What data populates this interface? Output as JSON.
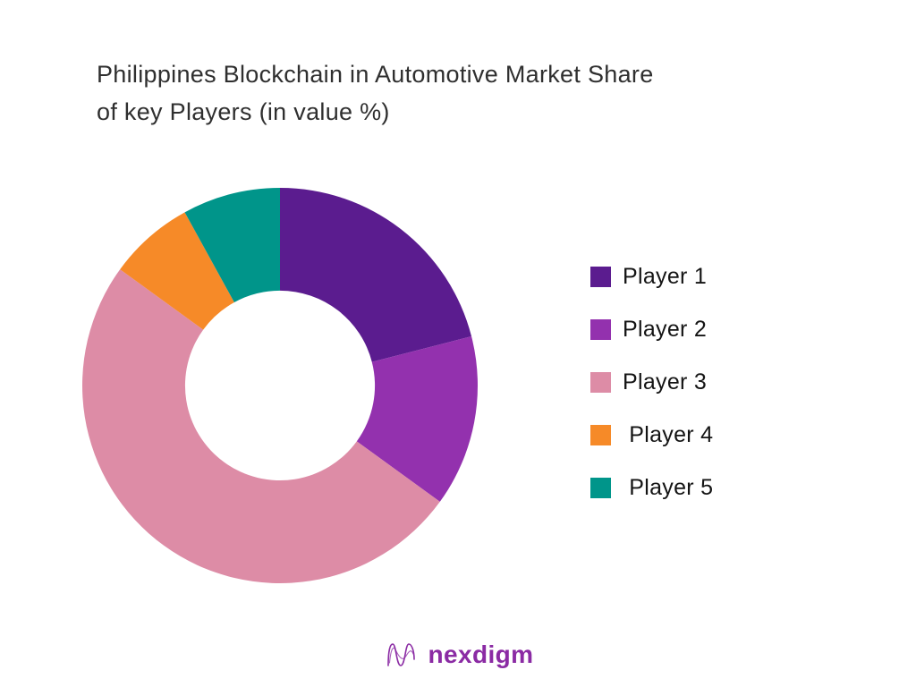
{
  "title": {
    "line1": "Philippines Blockchain in Automotive Market Share",
    "line2": "of key Players (in value %)"
  },
  "chart_data": {
    "type": "pie",
    "subtype": "donut",
    "title": "Philippines Blockchain in Automotive Market Share of key Players (in value %)",
    "categories": [
      "Player 1",
      "Player 2",
      "Player 3",
      "Player 4",
      "Player 5"
    ],
    "values": [
      21,
      14,
      50,
      7,
      8
    ],
    "unit": "percent (estimated from arc angles, no data labels shown)",
    "colors": [
      "#5B1C8F",
      "#9331AE",
      "#DD8CA6",
      "#F68A28",
      "#00958A"
    ],
    "start_angle_deg": 0,
    "direction": "clockwise",
    "inner_radius_ratio": 0.48,
    "legend_position": "right",
    "data_labels": false,
    "background": "#ffffff"
  },
  "legend": {
    "items": [
      {
        "label": "Player 1",
        "color": "#5B1C8F"
      },
      {
        "label": "Player 2",
        "color": "#9331AE"
      },
      {
        "label": "Player 3",
        "color": "#DD8CA6"
      },
      {
        "label": " Player 4",
        "color": "#F68A28"
      },
      {
        "label": " Player 5",
        "color": "#00958A"
      }
    ]
  },
  "footer": {
    "brand": "nexdigm",
    "brand_color": "#8B2BA4"
  }
}
